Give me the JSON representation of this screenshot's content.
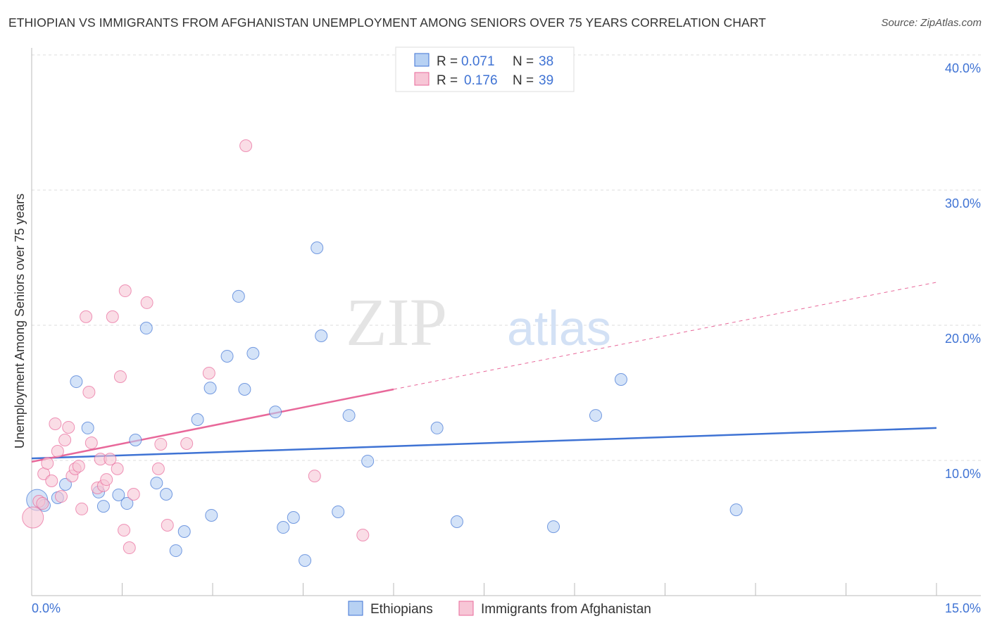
{
  "title": "ETHIOPIAN VS IMMIGRANTS FROM AFGHANISTAN UNEMPLOYMENT AMONG SENIORS OVER 75 YEARS CORRELATION CHART",
  "source": "Source: ZipAtlas.com",
  "watermark": "ZIPatlas",
  "colors": {
    "blue": "#3f73d4",
    "blue_fill": "#b7d1f3",
    "pink": "#e8689a",
    "pink_fill": "#f7c6d6"
  },
  "chart_data": {
    "type": "scatter",
    "title": "ETHIOPIAN VS IMMIGRANTS FROM AFGHANISTAN UNEMPLOYMENT AMONG SENIORS OVER 75 YEARS CORRELATION CHART",
    "xlabel": "",
    "ylabel": "Unemployment Among Seniors over 75 years",
    "xlim": [
      0,
      15
    ],
    "ylim": [
      0,
      40
    ],
    "x_tick_labels": [
      "0.0%",
      "15.0%"
    ],
    "y_ticks": [
      10,
      20,
      30,
      40
    ],
    "y_tick_labels": [
      "10.0%",
      "20.0%",
      "30.0%",
      "40.0%"
    ],
    "grid": true,
    "legend_top": [
      {
        "r_label": "R = ",
        "r": "0.071",
        "n_label": "N = ",
        "n": "38"
      },
      {
        "r_label": "R = ",
        "r": "0.176",
        "n_label": "N = ",
        "n": "39"
      }
    ],
    "legend_bottom": [
      "Ethiopians",
      "Immigrants from Afghanistan"
    ],
    "series": [
      {
        "name": "Ethiopians",
        "trend": {
          "x0": 0,
          "y0": 10.15,
          "x1": 15,
          "y1": 12.4
        },
        "points": [
          [
            0.09,
            7.08,
            "big"
          ],
          [
            0.21,
            6.67
          ],
          [
            0.43,
            7.24
          ],
          [
            0.56,
            8.23
          ],
          [
            0.74,
            15.83
          ],
          [
            0.93,
            12.4
          ],
          [
            1.11,
            7.66
          ],
          [
            1.19,
            6.61
          ],
          [
            1.44,
            7.45
          ],
          [
            1.58,
            6.82
          ],
          [
            1.72,
            11.51
          ],
          [
            1.9,
            19.79
          ],
          [
            2.07,
            8.33
          ],
          [
            2.23,
            7.5
          ],
          [
            2.53,
            4.74
          ],
          [
            2.39,
            3.33
          ],
          [
            2.75,
            13.02
          ],
          [
            2.96,
            15.36
          ],
          [
            2.98,
            5.94
          ],
          [
            3.24,
            17.71
          ],
          [
            3.43,
            22.14
          ],
          [
            3.53,
            15.26
          ],
          [
            3.67,
            17.92
          ],
          [
            4.04,
            13.59
          ],
          [
            4.17,
            5.05
          ],
          [
            4.34,
            5.78
          ],
          [
            4.53,
            2.6
          ],
          [
            4.73,
            25.73
          ],
          [
            4.8,
            19.22
          ],
          [
            5.08,
            6.2
          ],
          [
            5.26,
            13.33
          ],
          [
            5.57,
            9.95
          ],
          [
            6.72,
            12.4
          ],
          [
            7.05,
            5.47
          ],
          [
            8.65,
            5.1
          ],
          [
            9.35,
            13.33
          ],
          [
            9.77,
            15.99
          ],
          [
            11.68,
            6.35
          ]
        ]
      },
      {
        "name": "Immigrants from Afghanistan",
        "trend": {
          "x0": 0,
          "y0": 9.9,
          "x1": 6,
          "y1": 15.26,
          "dash_to_x": 15,
          "dash_to_y": 23.18
        },
        "points": [
          [
            0.02,
            5.78,
            "big"
          ],
          [
            0.12,
            6.98
          ],
          [
            0.18,
            6.82
          ],
          [
            0.2,
            9.01
          ],
          [
            0.26,
            9.79
          ],
          [
            0.33,
            8.49
          ],
          [
            0.39,
            12.71
          ],
          [
            0.43,
            10.68
          ],
          [
            0.49,
            7.34
          ],
          [
            0.55,
            11.51
          ],
          [
            0.61,
            12.45
          ],
          [
            0.67,
            8.85
          ],
          [
            0.72,
            9.38
          ],
          [
            0.78,
            9.58
          ],
          [
            0.83,
            6.41
          ],
          [
            0.9,
            20.63
          ],
          [
            0.95,
            15.05
          ],
          [
            0.99,
            11.3
          ],
          [
            1.09,
            7.97
          ],
          [
            1.14,
            10.1
          ],
          [
            1.19,
            8.13
          ],
          [
            1.24,
            8.59
          ],
          [
            1.3,
            10.1
          ],
          [
            1.34,
            20.63
          ],
          [
            1.42,
            9.38
          ],
          [
            1.47,
            16.2
          ],
          [
            1.53,
            4.84
          ],
          [
            1.55,
            22.55
          ],
          [
            1.62,
            3.54
          ],
          [
            1.69,
            7.5
          ],
          [
            1.91,
            21.67
          ],
          [
            2.1,
            9.38
          ],
          [
            2.14,
            11.2
          ],
          [
            2.25,
            5.21
          ],
          [
            2.57,
            11.25
          ],
          [
            2.94,
            16.46
          ],
          [
            3.55,
            33.28
          ],
          [
            4.69,
            8.85
          ],
          [
            5.49,
            4.48
          ]
        ]
      }
    ]
  }
}
